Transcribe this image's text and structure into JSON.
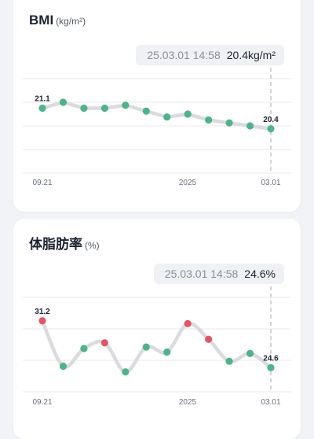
{
  "colors": {
    "normal": "#4fb38a",
    "high": "#e05868",
    "line": "#dadbde",
    "grid": "#e8e9ec"
  },
  "bmi": {
    "title": "BMI",
    "unit": "(kg/m²)",
    "tooltip": {
      "timestamp": "25.03.01 14:58",
      "value": "20.4kg/m²"
    },
    "x_labels": [
      "09.21",
      "2025",
      "03.01"
    ],
    "first_value_label": "21.1",
    "last_value_label": "20.4"
  },
  "body_fat": {
    "title": "体脂肪率",
    "unit": "(%)",
    "tooltip": {
      "timestamp": "25.03.01 14:58",
      "value": "24.6%"
    },
    "x_labels": [
      "09.21",
      "2025",
      "03.01"
    ],
    "first_value_label": "31.2",
    "last_value_label": "24.6"
  },
  "chart_data": [
    {
      "type": "line",
      "title": "BMI",
      "ylabel": "kg/m²",
      "x_ticks": [
        "09.21",
        "2025",
        "03.01"
      ],
      "series": [
        {
          "values": [
            21.1,
            21.3,
            21.1,
            21.1,
            21.2,
            21.0,
            20.8,
            20.9,
            20.7,
            20.6,
            20.5,
            20.4
          ],
          "status": [
            "normal",
            "normal",
            "normal",
            "normal",
            "normal",
            "normal",
            "normal",
            "normal",
            "normal",
            "normal",
            "normal",
            "normal"
          ]
        }
      ],
      "ylim": [
        19.7,
        22.1
      ],
      "grid": true
    },
    {
      "type": "line",
      "title": "体脂肪率",
      "ylabel": "%",
      "x_ticks": [
        "09.21",
        "2025",
        "03.01"
      ],
      "series": [
        {
          "values": [
            31.2,
            24.8,
            27.3,
            28.1,
            24.0,
            27.5,
            26.8,
            30.8,
            28.6,
            25.5,
            26.6,
            24.6
          ],
          "status": [
            "high",
            "normal",
            "normal",
            "high",
            "normal",
            "normal",
            "normal",
            "high",
            "high",
            "normal",
            "normal",
            "normal"
          ]
        }
      ],
      "ylim": [
        21.2,
        34.5
      ],
      "grid": true
    }
  ]
}
